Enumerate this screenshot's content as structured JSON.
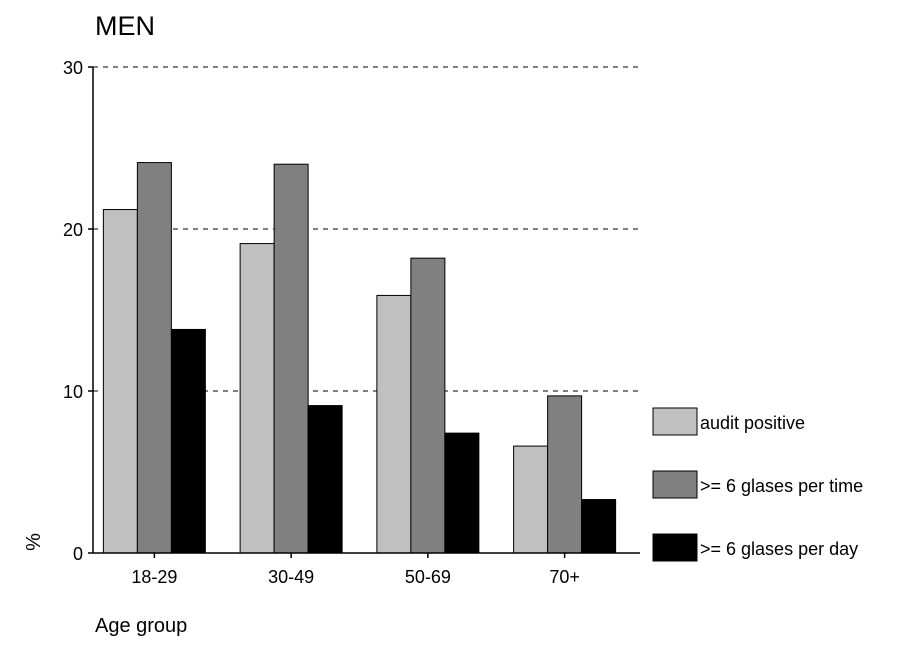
{
  "chart_data": {
    "type": "bar",
    "title": "MEN",
    "xlabel": "Age group",
    "ylabel": "%",
    "categories": [
      "18-29",
      "30-49",
      "50-69",
      "70+"
    ],
    "series": [
      {
        "name": "audit positive",
        "values": [
          21.2,
          19.1,
          15.9,
          6.6
        ],
        "color": "#c0c0c0"
      },
      {
        "name": ">= 6 glases per time",
        "values": [
          24.1,
          24.0,
          18.2,
          9.7
        ],
        "color": "#808080"
      },
      {
        "name": ">= 6 glases per day",
        "values": [
          13.8,
          9.1,
          7.4,
          3.3
        ],
        "color": "#000000"
      }
    ],
    "ylim": [
      0,
      30
    ],
    "yticks": [
      "0",
      "10",
      "20",
      "30"
    ],
    "grid": "horizontal dashed",
    "legend": "right"
  }
}
